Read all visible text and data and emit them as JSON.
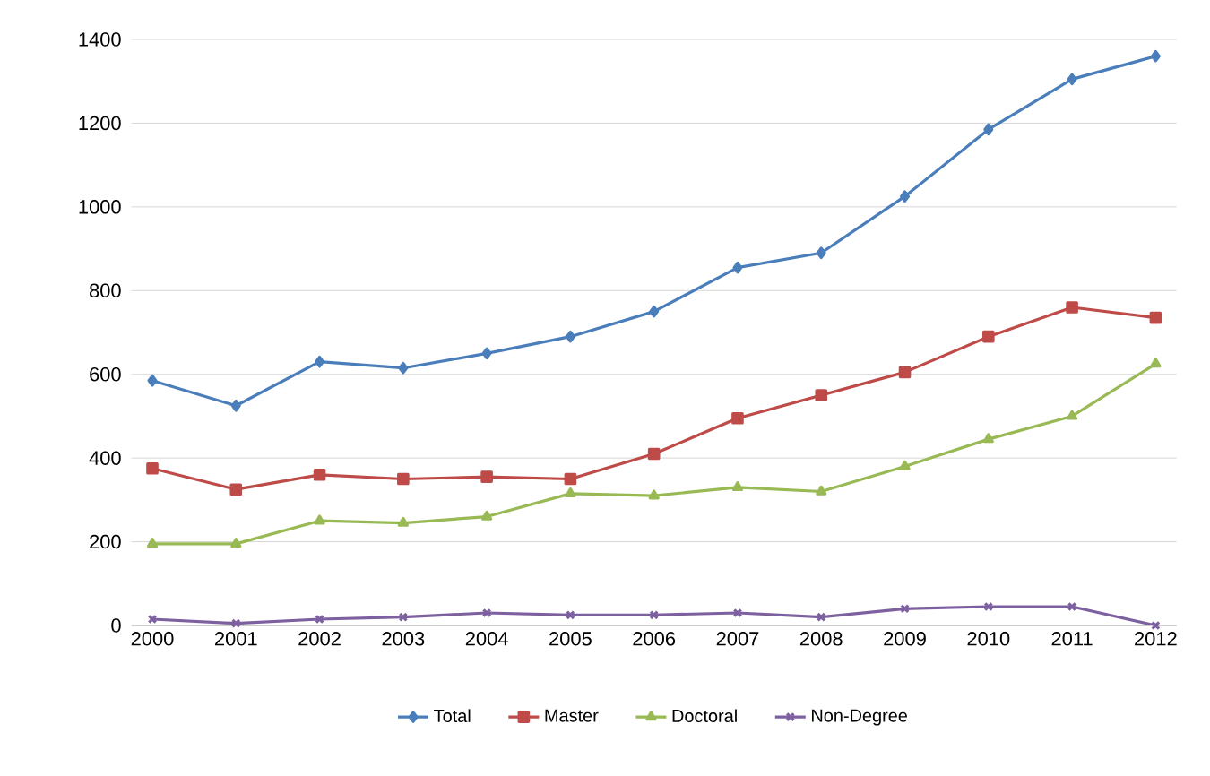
{
  "chart_data": {
    "type": "line",
    "categories": [
      "2000",
      "2001",
      "2002",
      "2003",
      "2004",
      "2005",
      "2006",
      "2007",
      "2008",
      "2009",
      "2010",
      "2011",
      "2012"
    ],
    "series": [
      {
        "name": "Total",
        "color": "#4a7ebb",
        "marker": "diamond",
        "values": [
          585,
          525,
          630,
          615,
          650,
          690,
          750,
          855,
          890,
          1025,
          1185,
          1305,
          1360
        ]
      },
      {
        "name": "Master",
        "color": "#be4b48",
        "marker": "square",
        "values": [
          375,
          325,
          360,
          350,
          355,
          350,
          410,
          495,
          550,
          605,
          690,
          760,
          735
        ]
      },
      {
        "name": "Doctoral",
        "color": "#98b954",
        "marker": "triangle",
        "values": [
          195,
          195,
          250,
          245,
          260,
          315,
          310,
          330,
          320,
          380,
          445,
          500,
          625
        ]
      },
      {
        "name": "Non-Degree",
        "color": "#7d60a0",
        "marker": "cross",
        "values": [
          15,
          5,
          15,
          20,
          30,
          25,
          25,
          30,
          20,
          40,
          45,
          45,
          0
        ]
      }
    ],
    "ylim": [
      0,
      1400
    ],
    "yticks": [
      0,
      200,
      400,
      600,
      800,
      1000,
      1200,
      1400
    ],
    "grid": "y",
    "legend": "bottom",
    "line_style": "solid"
  }
}
